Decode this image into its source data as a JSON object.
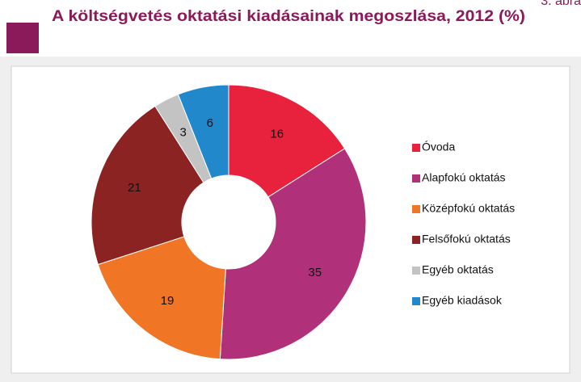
{
  "figure_label": "3. ábra",
  "chart_data": {
    "type": "pie",
    "donut": true,
    "title": "A költségvetés oktatási kiadásainak megoszlása, 2012 (%)",
    "categories": [
      "Óvoda",
      "Alapfokú oktatás",
      "Középfokú oktatás",
      "Felsőfokú oktatás",
      "Egyéb oktatás",
      "Egyéb kiadások"
    ],
    "values": [
      16,
      35,
      19,
      21,
      3,
      6
    ],
    "colors": [
      "#e8213c",
      "#b0307a",
      "#f07524",
      "#8b2323",
      "#c3c3c3",
      "#2288cc"
    ],
    "legend": "right"
  }
}
